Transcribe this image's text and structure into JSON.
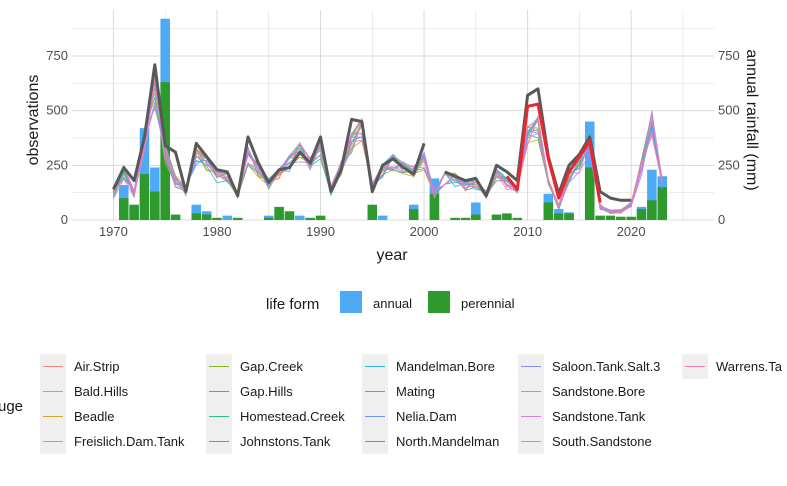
{
  "chart_data": {
    "type": "bar",
    "xlabel": "year",
    "ylabel": "observations",
    "ylabel_right": "annual rainfall (mm)",
    "xlim": [
      1966,
      2028
    ],
    "ylim": [
      0,
      960
    ],
    "x_ticks": [
      1970,
      1980,
      1990,
      2000,
      2010,
      2020
    ],
    "y_ticks": [
      0,
      250,
      500,
      750
    ],
    "y_ticks_right": [
      0,
      250,
      500,
      750
    ],
    "grid": true,
    "colors": {
      "annual": "#4daaf6",
      "perennial": "#2e9a2e",
      "rainfall_mean": "#595959",
      "rainfall_highlight": "#e8272f",
      "panel_grid": "#d9d9d9",
      "key_background": "#efefef"
    },
    "series": [
      {
        "name": "annual",
        "x": [
          1971,
          1972,
          1973,
          1974,
          1975,
          1976,
          1978,
          1979,
          1981,
          1985,
          1986,
          1987,
          1988,
          1990,
          1996,
          1999,
          2001,
          2005,
          2007,
          2008,
          2012,
          2013,
          2014,
          2016,
          2021,
          2022,
          2023
        ],
        "values": [
          160,
          60,
          420,
          240,
          920,
          20,
          70,
          40,
          20,
          20,
          30,
          30,
          20,
          10,
          20,
          70,
          190,
          80,
          25,
          30,
          120,
          50,
          35,
          450,
          60,
          230,
          200
        ]
      },
      {
        "name": "perennial",
        "x": [
          1971,
          1972,
          1973,
          1974,
          1975,
          1976,
          1978,
          1979,
          1980,
          1982,
          1985,
          1986,
          1987,
          1989,
          1990,
          1995,
          1999,
          2001,
          2003,
          2004,
          2005,
          2007,
          2008,
          2009,
          2012,
          2013,
          2014,
          2016,
          2017,
          2018,
          2019,
          2020,
          2021,
          2022,
          2023
        ],
        "values": [
          100,
          70,
          210,
          130,
          630,
          25,
          30,
          25,
          10,
          10,
          10,
          60,
          40,
          10,
          20,
          70,
          50,
          120,
          10,
          10,
          25,
          25,
          30,
          10,
          80,
          30,
          30,
          240,
          20,
          20,
          15,
          15,
          50,
          90,
          150
        ]
      }
    ],
    "rainfall_mean": {
      "x": [
        1970,
        1971,
        1972,
        1973,
        1974,
        1975,
        1976,
        1977,
        1978,
        1979,
        1980,
        1981,
        1982,
        1983,
        1984,
        1985,
        1986,
        1987,
        1988,
        1989,
        1990,
        1991,
        1992,
        1993,
        1994,
        1995,
        1996,
        1997,
        1998,
        1999,
        2000
      ],
      "values": [
        140,
        240,
        180,
        380,
        710,
        340,
        310,
        130,
        350,
        290,
        230,
        220,
        110,
        380,
        260,
        170,
        230,
        240,
        310,
        260,
        380,
        130,
        230,
        460,
        450,
        130,
        250,
        280,
        240,
        210,
        350
      ]
    },
    "rainfall_mean_2": {
      "x": [
        2002,
        2003,
        2004,
        2005,
        2006,
        2007,
        2008,
        2009,
        2010,
        2011,
        2012,
        2013,
        2014,
        2015,
        2016,
        2017,
        2018,
        2019,
        2020
      ],
      "values": [
        220,
        200,
        180,
        190,
        110,
        250,
        220,
        180,
        570,
        600,
        290,
        120,
        250,
        300,
        380,
        130,
        100,
        90,
        90
      ]
    },
    "rainfall_highlight": {
      "x": [
        2008,
        2009,
        2010,
        2011,
        2012,
        2013,
        2014,
        2015,
        2016,
        2017
      ],
      "values": [
        200,
        140,
        520,
        530,
        280,
        100,
        220,
        290,
        360,
        80
      ]
    },
    "gauge_lines": {
      "colors": [
        "#f2847a",
        "#e99a4a",
        "#d3a62c",
        "#b3b02c",
        "#83b92c",
        "#4cb94a",
        "#2ebc88",
        "#25b9b6",
        "#2eb0d8",
        "#4c9ff2",
        "#8a8ff2",
        "#b988f2",
        "#d97fe5",
        "#ee79c2",
        "#f27d9f"
      ],
      "x": [
        1970,
        1971,
        1972,
        1973,
        1974,
        1975,
        1976,
        1977,
        1978,
        1979,
        1980,
        1981,
        1982,
        1983,
        1984,
        1985,
        1986,
        1987,
        1988,
        1989,
        1990,
        1991,
        1992,
        1993,
        1994,
        1995,
        1996,
        1997,
        1998,
        1999,
        2000,
        2001,
        2002,
        2003,
        2004,
        2005,
        2006,
        2007,
        2008,
        2009,
        2010,
        2011,
        2012,
        2013,
        2014,
        2015,
        2016,
        2017,
        2018,
        2019,
        2020,
        2021,
        2022,
        2023
      ],
      "base": [
        120,
        220,
        120,
        380,
        600,
        310,
        180,
        140,
        300,
        270,
        210,
        200,
        120,
        300,
        230,
        170,
        210,
        270,
        320,
        260,
        330,
        140,
        240,
        360,
        420,
        150,
        230,
        270,
        240,
        220,
        280,
        120,
        200,
        190,
        160,
        170,
        120,
        210,
        170,
        140,
        390,
        430,
        200,
        60,
        200,
        260,
        360,
        60,
        40,
        40,
        70,
        250,
        450,
        170
      ]
    }
  },
  "legend_fill": {
    "title": "life form",
    "items": [
      {
        "label": "annual",
        "color": "#4daaf6"
      },
      {
        "label": "perennial",
        "color": "#2e9a2e"
      }
    ]
  },
  "legend_gauge": {
    "title_fragment": "uge",
    "columns": [
      [
        "Air.Strip",
        "Bald.Hills",
        "Beadle",
        "Freislich.Dam.Tank"
      ],
      [
        "Gap.Creek",
        "Gap.Hills",
        "Homestead.Creek",
        "Johnstons.Tank"
      ],
      [
        "Mandelman.Bore",
        "Mating",
        "Nelia.Dam",
        "North.Mandelman"
      ],
      [
        "Saloon.Tank.Salt.3",
        "Sandstone.Bore",
        "Sandstone.Tank",
        "South.Sandstone"
      ],
      [
        "Warrens.Ta"
      ]
    ],
    "colors": [
      [
        "#f2847a",
        "#e99a4a",
        "#d3a62c",
        "#b3b02c"
      ],
      [
        "#83b92c",
        "#4cb94a",
        "#2ebc88",
        "#25b9b6"
      ],
      [
        "#2eb0d8",
        "#4c9ff2",
        "#6f95f2",
        "#5d8ef0"
      ],
      [
        "#8a8ff2",
        "#b988f2",
        "#d97fe5",
        "#ee79c2"
      ],
      [
        "#f27d9f"
      ]
    ]
  }
}
